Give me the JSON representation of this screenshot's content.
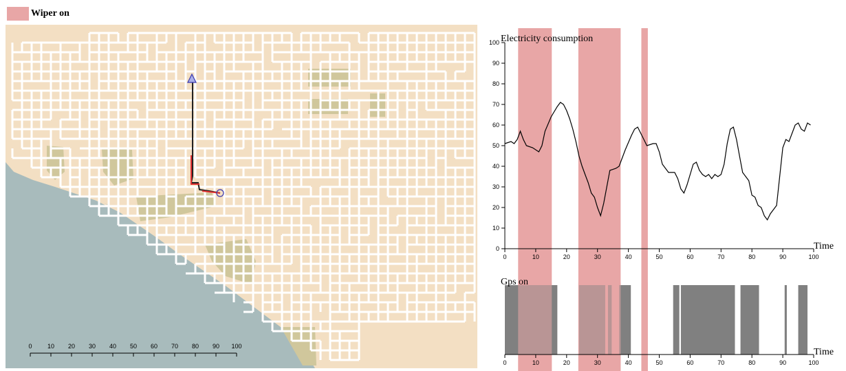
{
  "legend": {
    "label": "Wiper on",
    "color": "#e8a6a6"
  },
  "map": {
    "scale_ticks": [
      "0",
      "10",
      "20",
      "30",
      "40",
      "50",
      "60",
      "70",
      "80",
      "90",
      "100"
    ],
    "colors": {
      "land": "#f3dfc3",
      "water": "#a8bbbc",
      "park": "#d0c79c",
      "road": "#ffffff",
      "route": "#222222",
      "route_alt": "#e03030",
      "marker": "#3a3ab0"
    }
  },
  "chart_data": [
    {
      "type": "line",
      "title": "Electricity consumption",
      "xlabel": "Time",
      "ylabel": "",
      "xlim": [
        0,
        100
      ],
      "ylim": [
        0,
        100
      ],
      "xticks": [
        "0",
        "10",
        "20",
        "30",
        "40",
        "50",
        "60",
        "70",
        "80",
        "90",
        "100"
      ],
      "yticks": [
        "0",
        "10",
        "20",
        "30",
        "40",
        "50",
        "60",
        "70",
        "80",
        "90",
        "100"
      ],
      "series": [
        {
          "color": "#000000",
          "points": [
            [
              0,
              51
            ],
            [
              2,
              52
            ],
            [
              3,
              51
            ],
            [
              4,
              53
            ],
            [
              5,
              57
            ],
            [
              6,
              53
            ],
            [
              7,
              50
            ],
            [
              9,
              49
            ],
            [
              11,
              47
            ],
            [
              12,
              50
            ],
            [
              13,
              57
            ],
            [
              15,
              64
            ],
            [
              17,
              69
            ],
            [
              18,
              71
            ],
            [
              19,
              70
            ],
            [
              20,
              67
            ],
            [
              21,
              63
            ],
            [
              22,
              58
            ],
            [
              23,
              52
            ],
            [
              24,
              45
            ],
            [
              25,
              40
            ],
            [
              26,
              36
            ],
            [
              27,
              32
            ],
            [
              28,
              27
            ],
            [
              29,
              25
            ],
            [
              30,
              20
            ],
            [
              31,
              16
            ],
            [
              32,
              22
            ],
            [
              33,
              30
            ],
            [
              34,
              38
            ],
            [
              36,
              39
            ],
            [
              37,
              40
            ],
            [
              38,
              44
            ],
            [
              39,
              48
            ],
            [
              41,
              55
            ],
            [
              42,
              58
            ],
            [
              43,
              59
            ],
            [
              44,
              56
            ],
            [
              45,
              53
            ],
            [
              46,
              50
            ],
            [
              48,
              51
            ],
            [
              49,
              51
            ],
            [
              50,
              47
            ],
            [
              51,
              41
            ],
            [
              53,
              37
            ],
            [
              55,
              37
            ],
            [
              56,
              34
            ],
            [
              57,
              29
            ],
            [
              58,
              27
            ],
            [
              59,
              31
            ],
            [
              60,
              36
            ],
            [
              61,
              41
            ],
            [
              62,
              42
            ],
            [
              63,
              38
            ],
            [
              64,
              36
            ],
            [
              65,
              35
            ],
            [
              66,
              36
            ],
            [
              67,
              34
            ],
            [
              68,
              36
            ],
            [
              69,
              35
            ],
            [
              70,
              36
            ],
            [
              71,
              41
            ],
            [
              72,
              51
            ],
            [
              73,
              58
            ],
            [
              74,
              59
            ],
            [
              75,
              53
            ],
            [
              76,
              45
            ],
            [
              77,
              37
            ],
            [
              78,
              35
            ],
            [
              79,
              33
            ],
            [
              80,
              26
            ],
            [
              81,
              25
            ],
            [
              82,
              21
            ],
            [
              83,
              20
            ],
            [
              84,
              16
            ],
            [
              85,
              14
            ],
            [
              86,
              17
            ],
            [
              87,
              19
            ],
            [
              88,
              21
            ],
            [
              89,
              35
            ],
            [
              90,
              49
            ],
            [
              91,
              53
            ],
            [
              92,
              52
            ],
            [
              93,
              56
            ],
            [
              94,
              60
            ],
            [
              95,
              61
            ],
            [
              96,
              58
            ],
            [
              97,
              57
            ],
            [
              98,
              61
            ],
            [
              99,
              60
            ]
          ]
        }
      ],
      "wiper_intervals": [
        [
          4.3,
          15.2
        ],
        [
          23.8,
          37.5
        ],
        [
          44.2,
          46.3
        ]
      ]
    },
    {
      "type": "bar",
      "title": "Gps on",
      "xlabel": "Time",
      "xlim": [
        0,
        100
      ],
      "xticks": [
        "0",
        "10",
        "20",
        "30",
        "40",
        "50",
        "60",
        "70",
        "80",
        "90",
        "100"
      ],
      "bar_color": "#808080",
      "intervals": [
        [
          0,
          17
        ],
        [
          24,
          32.5
        ],
        [
          33.4,
          34.6
        ],
        [
          37,
          40.8
        ],
        [
          54.5,
          56.5
        ],
        [
          57,
          74.5
        ],
        [
          76.3,
          82.3
        ],
        [
          90.6,
          91.3
        ],
        [
          95,
          98
        ]
      ],
      "wiper_intervals": [
        [
          4.3,
          15.2
        ],
        [
          23.8,
          37.5
        ],
        [
          44.2,
          46.3
        ]
      ]
    }
  ]
}
